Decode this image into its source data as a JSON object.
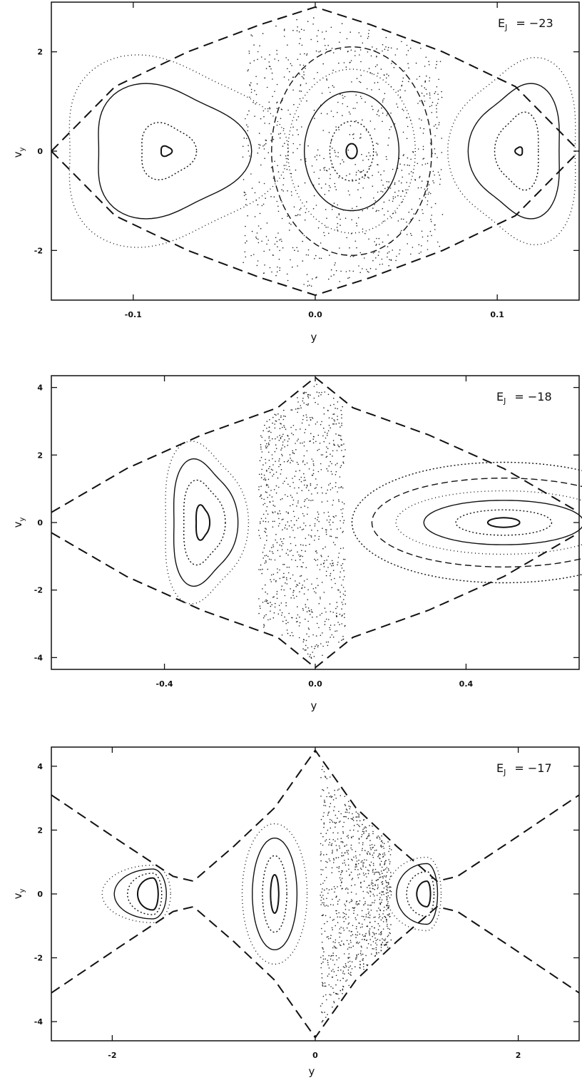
{
  "chart_data": [
    {
      "type": "scatter",
      "annotation": {
        "symbol": "E",
        "sub": "J",
        "rest": "= −23"
      },
      "xlabel": "y",
      "ylabel": {
        "main": "v",
        "sub": "y"
      },
      "xlim": [
        -0.145,
        0.145
      ],
      "ylim": [
        -3.0,
        3.0
      ],
      "xticks": [
        -0.1,
        0.0,
        0.1
      ],
      "xtick_labels": [
        "-0.1",
        "0.0",
        "0.1"
      ],
      "yticks": [
        -2,
        0,
        2
      ],
      "ytick_labels": [
        "-2",
        "0",
        "2"
      ],
      "zero_velocity_curve": {
        "x": [
          -0.145,
          -0.11,
          -0.07,
          -0.03,
          0.0,
          0.03,
          0.07,
          0.11,
          0.145
        ],
        "v": [
          0.0,
          1.3,
          2.0,
          2.55,
          2.9,
          2.55,
          2.0,
          1.3,
          0.0
        ]
      },
      "islands": [
        {
          "center": [
            -0.082,
            0.0
          ],
          "radii": [
            [
              0.003,
              0.1
            ],
            [
              0.015,
              0.55
            ],
            [
              0.042,
              1.3
            ],
            [
              0.06,
              1.85
            ]
          ],
          "shape": "triangle-right"
        },
        {
          "center": [
            0.02,
            0.0
          ],
          "radii": [
            [
              0.003,
              0.15
            ],
            [
              0.012,
              0.6
            ],
            [
              0.026,
              1.2
            ],
            [
              0.035,
              1.65
            ],
            [
              0.044,
              2.1
            ]
          ],
          "shape": "oval"
        },
        {
          "center": [
            0.112,
            0.0
          ],
          "radii": [
            [
              0.002,
              0.08
            ],
            [
              0.012,
              0.75
            ],
            [
              0.025,
              1.3
            ],
            [
              0.035,
              1.8
            ]
          ],
          "shape": "triangle-left"
        }
      ],
      "chaotic_region_x": [
        -0.04,
        0.07
      ]
    },
    {
      "type": "scatter",
      "annotation": {
        "symbol": "E",
        "sub": "J",
        "rest": "= −18"
      },
      "xlabel": "y",
      "ylabel": {
        "main": "v",
        "sub": "y"
      },
      "xlim": [
        -0.7,
        0.7
      ],
      "ylim": [
        -4.35,
        4.35
      ],
      "xticks": [
        -0.4,
        0.0,
        0.4
      ],
      "xtick_labels": [
        "-0.4",
        "0.0",
        "0.4"
      ],
      "yticks": [
        -4,
        -2,
        0,
        2,
        4
      ],
      "ytick_labels": [
        "-4",
        "-2",
        "0",
        "2",
        "4"
      ],
      "zero_velocity_curve": {
        "x": [
          -0.7,
          -0.5,
          -0.3,
          -0.1,
          0.0,
          0.1,
          0.3,
          0.5,
          0.7
        ],
        "v": [
          0.3,
          1.6,
          2.6,
          3.4,
          4.3,
          3.4,
          2.6,
          1.6,
          0.3
        ]
      },
      "islands": [
        {
          "center": [
            -0.3,
            0.0
          ],
          "radii": [
            [
              0.018,
              0.5
            ],
            [
              0.055,
              1.2
            ],
            [
              0.085,
              1.8
            ],
            [
              0.11,
              2.3
            ]
          ],
          "shape": "triangle-right"
        },
        {
          "center": [
            0.5,
            0.0
          ],
          "radii": [
            [
              0.04,
              0.15
            ],
            [
              0.12,
              0.4
            ],
            [
              0.2,
              0.7
            ],
            [
              0.27,
              1.0
            ],
            [
              0.33,
              1.4
            ],
            [
              0.38,
              1.9
            ]
          ],
          "shape": "banana"
        }
      ],
      "chaotic_region_x": [
        -0.15,
        0.08
      ]
    },
    {
      "type": "scatter",
      "annotation": {
        "symbol": "E",
        "sub": "J",
        "rest": "= −17"
      },
      "xlabel": "y",
      "ylabel": {
        "main": "v",
        "sub": "y"
      },
      "xlim": [
        -2.6,
        2.6
      ],
      "ylim": [
        -4.6,
        4.6
      ],
      "xticks": [
        -2,
        0,
        2
      ],
      "xtick_labels": [
        "-2",
        "0",
        "2"
      ],
      "yticks": [
        -4,
        -2,
        0,
        2,
        4
      ],
      "ytick_labels": [
        "-4",
        "-2",
        "0",
        "2",
        "4"
      ],
      "zero_velocity_curve": {
        "x": [
          -2.6,
          -1.9,
          -1.4,
          -1.2,
          -0.8,
          -0.4,
          0.0,
          0.4,
          0.8,
          1.2,
          1.4,
          1.9,
          2.6
        ],
        "v": [
          3.1,
          1.6,
          0.55,
          0.4,
          1.5,
          2.7,
          4.5,
          2.7,
          1.5,
          0.4,
          0.55,
          1.6,
          3.1
        ]
      },
      "islands": [
        {
          "center": [
            -1.6,
            0.0
          ],
          "radii": [
            [
              0.15,
              0.5
            ],
            [
              0.25,
              0.65
            ],
            [
              0.38,
              0.78
            ],
            [
              0.5,
              0.9
            ]
          ],
          "shape": "crescent"
        },
        {
          "center": [
            -0.4,
            0.0
          ],
          "radii": [
            [
              0.04,
              0.6
            ],
            [
              0.12,
              1.2
            ],
            [
              0.22,
              1.75
            ],
            [
              0.32,
              2.2
            ]
          ],
          "shape": "oval"
        },
        {
          "center": [
            1.1,
            0.0
          ],
          "radii": [
            [
              0.1,
              0.4
            ],
            [
              0.2,
              0.7
            ],
            [
              0.3,
              0.95
            ],
            [
              0.4,
              1.15
            ]
          ],
          "shape": "crescent"
        }
      ],
      "chaotic_region_x": [
        0.05,
        0.75
      ]
    }
  ]
}
